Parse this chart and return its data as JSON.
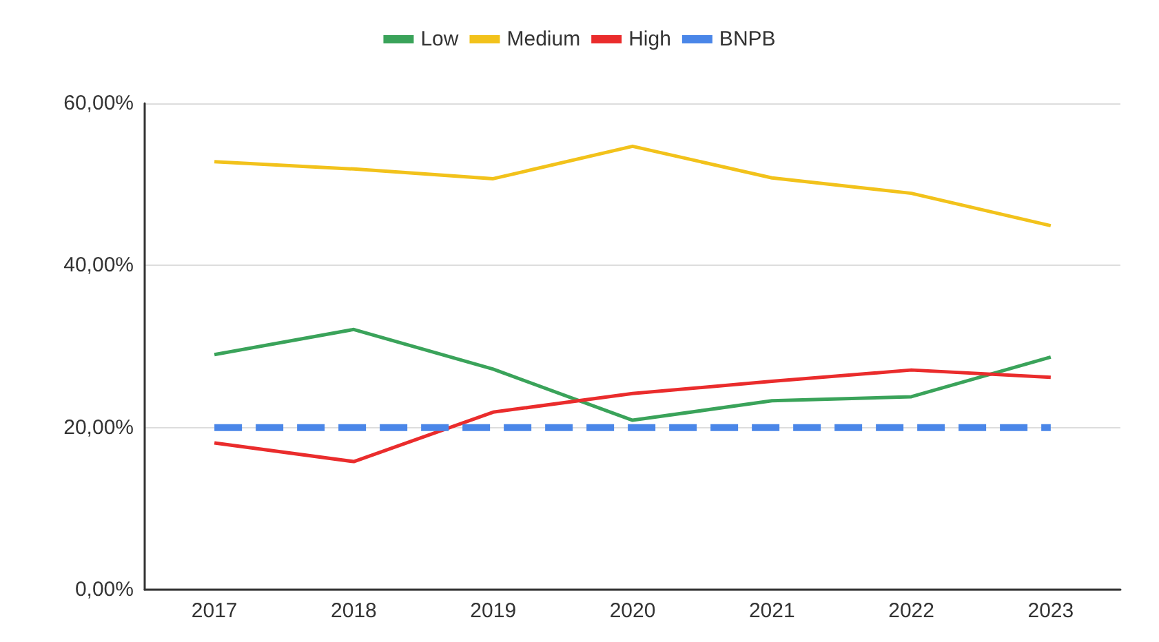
{
  "chart_data": {
    "type": "line",
    "categories": [
      "2017",
      "2018",
      "2019",
      "2020",
      "2021",
      "2022",
      "2023"
    ],
    "series": [
      {
        "name": "Low",
        "color": "#3aa35a",
        "values": [
          29.0,
          32.1,
          27.2,
          20.9,
          23.3,
          23.8,
          28.7
        ]
      },
      {
        "name": "Medium",
        "color": "#f2c21b",
        "values": [
          52.8,
          51.9,
          50.7,
          54.7,
          50.8,
          48.9,
          44.9
        ]
      },
      {
        "name": "High",
        "color": "#ea2c2c",
        "values": [
          18.1,
          15.8,
          21.9,
          24.2,
          25.7,
          27.1,
          26.2
        ]
      },
      {
        "name": "BNPB",
        "color": "#4a86e8",
        "line_style": "dashed",
        "values": [
          20,
          20,
          20,
          20,
          20,
          20,
          20
        ]
      }
    ],
    "ylim": [
      0,
      60
    ],
    "yticks": [
      {
        "value": 0,
        "label": "0,00%"
      },
      {
        "value": 20,
        "label": "20,00%"
      },
      {
        "value": 40,
        "label": "40,00%"
      },
      {
        "value": 60,
        "label": "60,00%"
      }
    ],
    "grid": "y",
    "legend": "top",
    "marker": "none",
    "line_style": "solid"
  }
}
